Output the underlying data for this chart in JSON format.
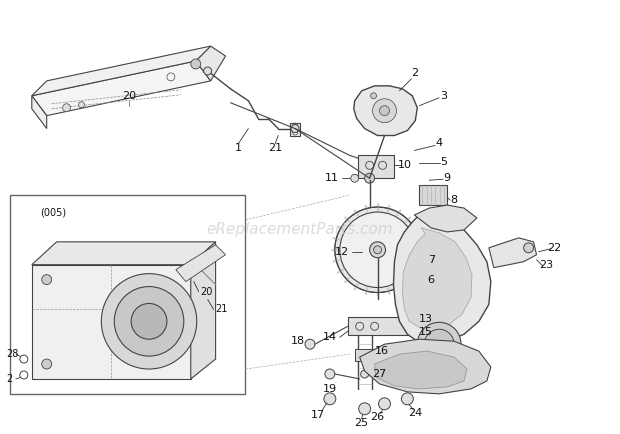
{
  "bg_color": "#ffffff",
  "line_color": "#444444",
  "label_color": "#111111",
  "watermark": "eReplacementParts.com",
  "fig_width": 6.2,
  "fig_height": 4.34,
  "dpi": 100
}
